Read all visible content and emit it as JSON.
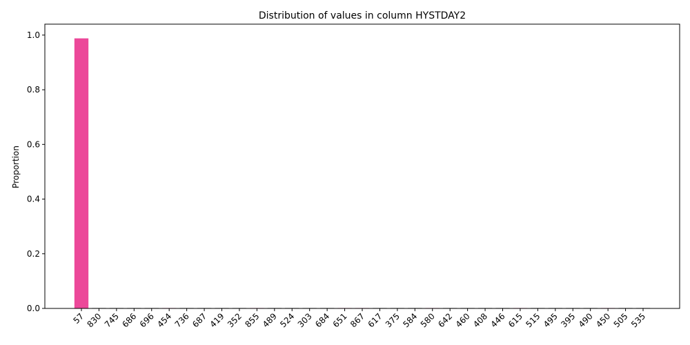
{
  "chart_data": {
    "type": "bar",
    "title": "Distribution of values in column HYSTDAY2",
    "xlabel": "",
    "ylabel": "Proportion",
    "ylim": [
      0,
      1.04
    ],
    "yticks": [
      "0.0",
      "0.2",
      "0.4",
      "0.6",
      "0.8",
      "1.0"
    ],
    "grid": false,
    "categories": [
      "57",
      "830",
      "745",
      "686",
      "696",
      "454",
      "736",
      "687",
      "419",
      "352",
      "855",
      "489",
      "524",
      "303",
      "684",
      "651",
      "867",
      "617",
      "375",
      "584",
      "580",
      "642",
      "460",
      "408",
      "446",
      "615",
      "515",
      "495",
      "395",
      "490",
      "450",
      "505",
      "535"
    ],
    "values": [
      0.988,
      0.0004,
      0.0004,
      0.0004,
      0.0004,
      0.0004,
      0.0004,
      0.0004,
      0.0004,
      0.0004,
      0.0004,
      0.0004,
      0.0004,
      0.0004,
      0.0004,
      0.0004,
      0.0004,
      0.0004,
      0.0004,
      0.0004,
      0.0004,
      0.0004,
      0.0004,
      0.0004,
      0.0004,
      0.0004,
      0.0004,
      0.0004,
      0.0004,
      0.0004,
      0.0004,
      0.0004,
      0.0004
    ],
    "colors": [
      "#ec4899",
      "#111111",
      "#111111",
      "#111111",
      "#111111",
      "#ec4899",
      "#111111",
      "#111111",
      "#111111",
      "#111111",
      "#ec4899",
      "#111111",
      "#111111",
      "#111111",
      "#111111",
      "#ec4899",
      "#ec4899",
      "#111111",
      "#111111",
      "#111111",
      "#ec4899",
      "#111111",
      "#111111",
      "#111111",
      "#111111",
      "#ec4899",
      "#111111",
      "#111111",
      "#111111",
      "#111111",
      "#ec4899",
      "#111111",
      "#111111"
    ]
  }
}
